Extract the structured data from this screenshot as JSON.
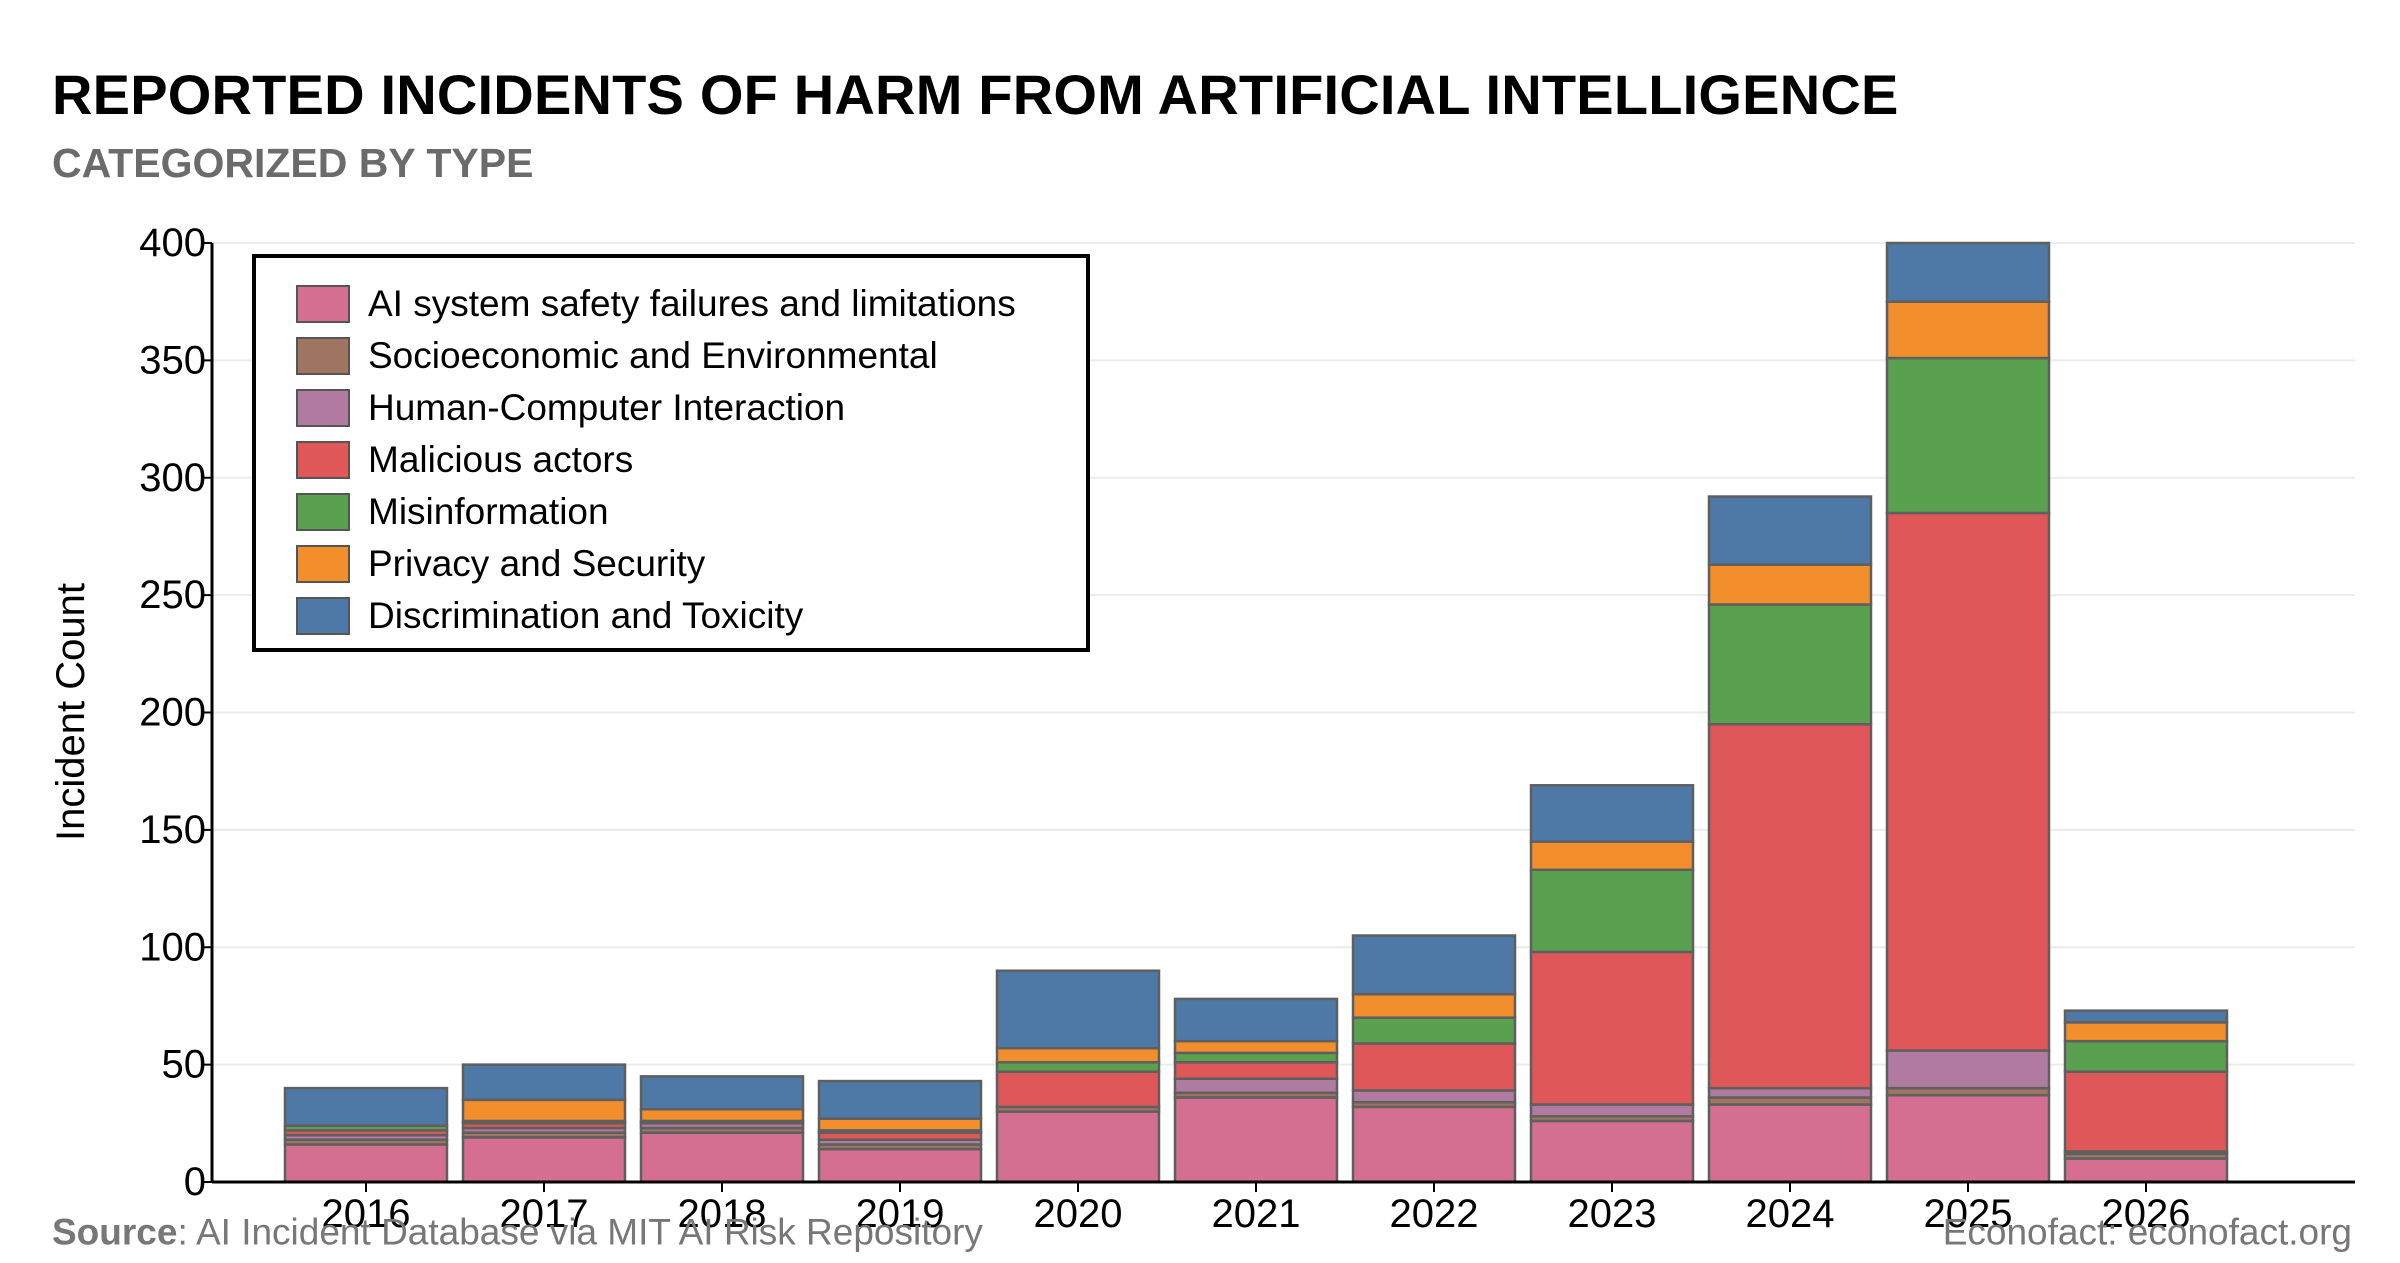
{
  "title": "REPORTED INCIDENTS OF HARM FROM ARTIFICIAL INTELLIGENCE",
  "subtitle": "CATEGORIZED BY TYPE",
  "source_label": "Source",
  "source_text": ": AI Incident Database via MIT AI Risk Repository",
  "credit": "Econofact: econofact.org",
  "chart_data": {
    "type": "bar",
    "stacked": true,
    "title": "REPORTED INCIDENTS OF HARM FROM ARTIFICIAL INTELLIGENCE",
    "subtitle": "CATEGORIZED BY TYPE",
    "xlabel": "",
    "ylabel": "Incident Count",
    "ylim": [
      0,
      400
    ],
    "yticks": [
      "0",
      "50",
      "100",
      "150",
      "200",
      "250",
      "300",
      "350",
      "400"
    ],
    "categories": [
      "2016",
      "2017",
      "2018",
      "2019",
      "2020",
      "2021",
      "2022",
      "2023",
      "2024",
      "2025",
      "2026"
    ],
    "legend_position": "top-left",
    "grid": true,
    "series": [
      {
        "name": "AI system safety failures and limitations",
        "color": "#d46f91",
        "values": [
          16,
          19,
          21,
          14,
          30,
          36,
          32,
          26,
          33,
          37,
          10
        ]
      },
      {
        "name": "Socioeconomic and Environmental",
        "color": "#9e7560",
        "values": [
          2,
          2,
          2,
          2,
          2,
          2,
          2,
          2,
          3,
          3,
          2
        ]
      },
      {
        "name": "Human-Computer Interaction",
        "color": "#b07aa1",
        "values": [
          2,
          2,
          2,
          2,
          0,
          6,
          5,
          5,
          4,
          16,
          1
        ]
      },
      {
        "name": "Malicious actors",
        "color": "#e05759",
        "values": [
          2,
          2,
          1,
          3,
          15,
          7,
          20,
          65,
          155,
          229,
          34
        ]
      },
      {
        "name": "Misinformation",
        "color": "#59a14f",
        "values": [
          2,
          1,
          0,
          1,
          4,
          4,
          11,
          35,
          51,
          66,
          13
        ]
      },
      {
        "name": "Privacy and Security",
        "color": "#f28e2b",
        "values": [
          0,
          9,
          5,
          5,
          6,
          5,
          10,
          12,
          17,
          24,
          8
        ]
      },
      {
        "name": "Discrimination and Toxicity",
        "color": "#4e79a7",
        "values": [
          16,
          15,
          14,
          16,
          33,
          18,
          25,
          24,
          29,
          25,
          5
        ]
      }
    ]
  }
}
